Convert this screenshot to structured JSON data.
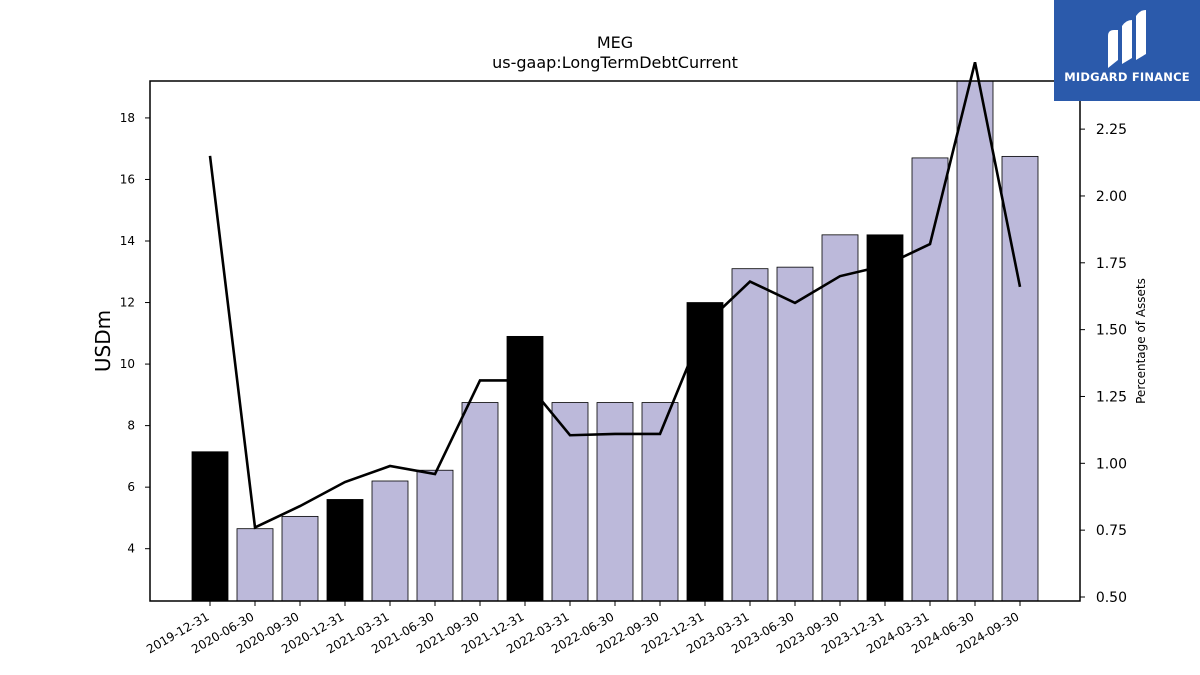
{
  "logo": {
    "text": "MIDGARD FINANCE",
    "icon": "midgard-logo-icon",
    "background": "#2b5aab"
  },
  "chart_data": {
    "type": "bar",
    "title": "MEG",
    "subtitle": "us-gaap:LongTermDebtCurrent",
    "ylabel": "USDm",
    "y2label": "Percentage of Assets",
    "categories": [
      "2019-12-31",
      "2020-06-30",
      "2020-09-30",
      "2020-12-31",
      "2021-03-31",
      "2021-06-30",
      "2021-09-30",
      "2021-12-31",
      "2022-03-31",
      "2022-06-30",
      "2022-09-30",
      "2022-12-31",
      "2023-03-31",
      "2023-06-30",
      "2023-09-30",
      "2023-12-31",
      "2024-03-31",
      "2024-06-30",
      "2024-09-30"
    ],
    "series": [
      {
        "type": "bar",
        "values": [
          7.15,
          4.65,
          5.05,
          5.6,
          6.2,
          6.55,
          8.75,
          10.9,
          8.75,
          8.75,
          8.75,
          12.0,
          13.1,
          13.15,
          14.2,
          14.2,
          16.7,
          19.2,
          16.75
        ],
        "highlight": [
          true,
          false,
          false,
          true,
          false,
          false,
          false,
          true,
          false,
          false,
          false,
          true,
          false,
          false,
          false,
          true,
          false,
          false,
          false
        ]
      },
      {
        "type": "line",
        "axis": "right",
        "values": [
          2.15,
          0.76,
          0.84,
          0.93,
          0.99,
          0.96,
          1.31,
          1.31,
          1.105,
          1.11,
          1.11,
          1.52,
          1.68,
          1.6,
          1.7,
          1.74,
          1.82,
          2.5,
          1.66
        ]
      }
    ],
    "ylim": [
      2.3,
      19.2
    ],
    "yticks": [
      4,
      6,
      8,
      10,
      12,
      14,
      16,
      18
    ],
    "y2lim": [
      0.485,
      2.43
    ],
    "y2ticks": [
      "0.50",
      "0.75",
      "1.00",
      "1.25",
      "1.50",
      "1.75",
      "2.00",
      "2.25"
    ],
    "colors": {
      "bar": "#bcb9da",
      "bar_highlight": "#000000",
      "line": "#000000"
    },
    "grid": false
  }
}
